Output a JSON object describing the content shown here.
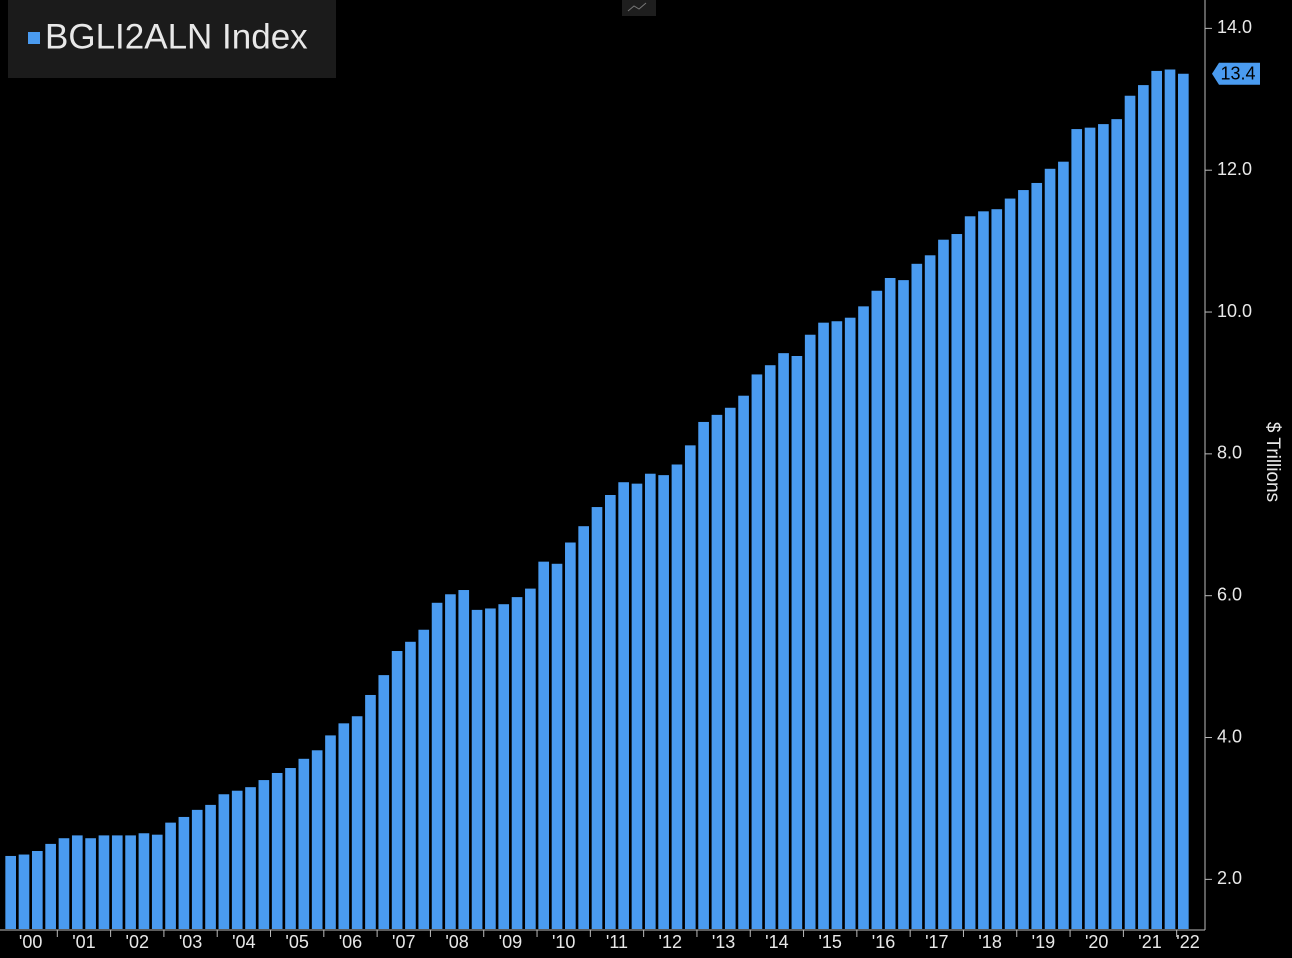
{
  "chart_data": {
    "type": "bar",
    "title": "BGLI2ALN Index",
    "y_axis_label": "$ Trillions",
    "color": "#4a9bf0",
    "last_label": "13.4",
    "categories": [
      "'00",
      null,
      null,
      null,
      "'01",
      null,
      null,
      null,
      "'02",
      null,
      null,
      null,
      "'03",
      null,
      null,
      null,
      "'04",
      null,
      null,
      null,
      "'05",
      null,
      null,
      null,
      "'06",
      null,
      null,
      null,
      "'07",
      null,
      null,
      null,
      "'08",
      null,
      null,
      null,
      "'09",
      null,
      null,
      null,
      "'10",
      null,
      null,
      null,
      "'11",
      null,
      null,
      null,
      "'12",
      null,
      null,
      null,
      "'13",
      null,
      null,
      null,
      "'14",
      null,
      null,
      null,
      "'15",
      null,
      null,
      null,
      "'16",
      null,
      null,
      null,
      "'17",
      null,
      null,
      null,
      "'18",
      null,
      null,
      null,
      "'19",
      null,
      null,
      null,
      "'20",
      null,
      null,
      null,
      "'21",
      null,
      null,
      null,
      "'22"
    ],
    "values": [
      2.33,
      2.35,
      2.4,
      2.5,
      2.58,
      2.62,
      2.58,
      2.62,
      2.62,
      2.62,
      2.65,
      2.63,
      2.8,
      2.88,
      2.98,
      3.05,
      3.2,
      3.25,
      3.3,
      3.4,
      3.5,
      3.57,
      3.7,
      3.82,
      4.03,
      4.2,
      4.3,
      4.6,
      4.88,
      5.22,
      5.35,
      5.52,
      5.9,
      6.02,
      6.08,
      5.8,
      5.82,
      5.88,
      5.98,
      6.1,
      6.48,
      6.45,
      6.75,
      6.98,
      7.25,
      7.42,
      7.6,
      7.58,
      7.72,
      7.7,
      7.85,
      8.12,
      8.45,
      8.55,
      8.65,
      8.82,
      9.12,
      9.25,
      9.42,
      9.38,
      9.68,
      9.85,
      9.87,
      9.92,
      10.08,
      10.3,
      10.48,
      10.45,
      10.68,
      10.8,
      11.02,
      11.1,
      11.35,
      11.42,
      11.45,
      11.6,
      11.72,
      11.82,
      12.02,
      12.12,
      12.58,
      12.6,
      12.65,
      12.72,
      13.05,
      13.2,
      13.4,
      13.42,
      13.36
    ],
    "ylim": [
      1.3,
      14.4
    ],
    "yticks": [
      {
        "value": 2,
        "label": "2.0"
      },
      {
        "value": 4,
        "label": "4.0"
      },
      {
        "value": 6,
        "label": "6.0"
      },
      {
        "value": 8,
        "label": "8.0"
      },
      {
        "value": 10,
        "label": "10.0"
      },
      {
        "value": 12,
        "label": "12.0"
      },
      {
        "value": 14,
        "label": "14.0"
      }
    ],
    "legend": "top-left"
  }
}
